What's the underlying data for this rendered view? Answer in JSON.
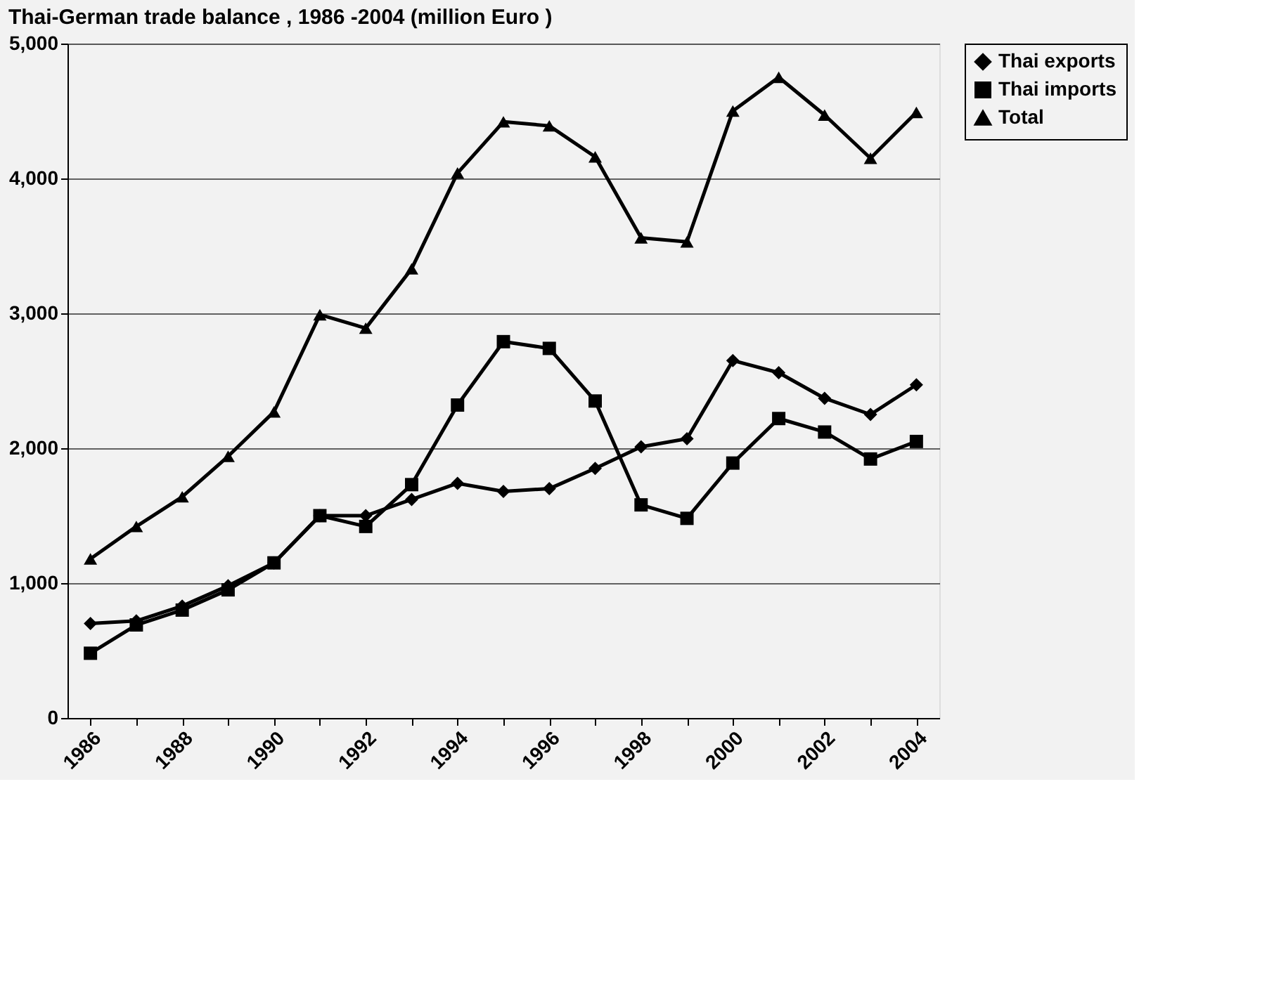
{
  "chart_data": {
    "type": "line",
    "title": "Thai-German trade balance  , 1986 -2004 (million Euro )",
    "categories": [
      "1986",
      null,
      "1988",
      null,
      "1990",
      null,
      "1992",
      null,
      "1994",
      null,
      "1996",
      null,
      "1998",
      null,
      "2000",
      null,
      "2002",
      null,
      "2004"
    ],
    "series": [
      {
        "name": "Thai exports",
        "color": "#000000",
        "marker": "diamond",
        "values": [
          700,
          720,
          830,
          980,
          1150,
          1500,
          1500,
          1620,
          1740,
          1680,
          1700,
          1850,
          2010,
          2070,
          2650,
          2560,
          2370,
          2250,
          2470
        ]
      },
      {
        "name": "Thai imports",
        "color": "#000000",
        "marker": "square",
        "values": [
          480,
          690,
          800,
          950,
          1150,
          1500,
          1420,
          1730,
          2320,
          2790,
          2740,
          2350,
          1580,
          1480,
          1890,
          2220,
          2120,
          1920,
          2050
        ]
      },
      {
        "name": "Total",
        "color": "#000000",
        "marker": "triangle",
        "values": [
          1180,
          1420,
          1640,
          1940,
          2270,
          2990,
          2890,
          3330,
          4040,
          4420,
          4390,
          4160,
          3560,
          3530,
          4500,
          4750,
          4470,
          4150,
          4490
        ]
      }
    ],
    "ylim": [
      0,
      5000
    ],
    "yticks": [
      {
        "value": 0,
        "label": "0"
      },
      {
        "value": 1000,
        "label": "1,000"
      },
      {
        "value": 2000,
        "label": "2,000"
      },
      {
        "value": 3000,
        "label": "3,000"
      },
      {
        "value": 4000,
        "label": "4,000"
      },
      {
        "value": 5000,
        "label": "5,000"
      }
    ],
    "grid": "y",
    "legend": "right",
    "line_style": "solid"
  }
}
